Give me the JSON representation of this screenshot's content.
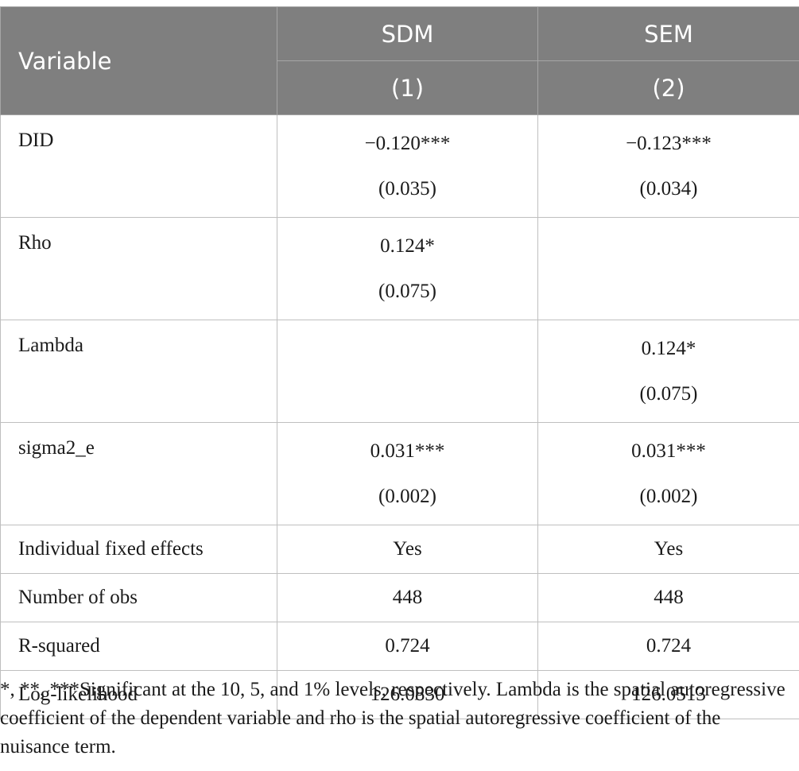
{
  "table": {
    "header": {
      "variable": "Variable",
      "col1_model": "SDM",
      "col2_model": "SEM",
      "col1_num": "(1)",
      "col2_num": "(2)"
    },
    "rows": [
      {
        "label": "DID",
        "c1": "−0.120***",
        "c1_se": "(0.035)",
        "c2": "−0.123***",
        "c2_se": "(0.034)"
      },
      {
        "label": "Rho",
        "c1": "0.124*",
        "c1_se": "(0.075)",
        "c2": "",
        "c2_se": ""
      },
      {
        "label": "Lambda",
        "c1": "",
        "c1_se": "",
        "c2": "0.124*",
        "c2_se": "(0.075)"
      },
      {
        "label": "sigma2_e",
        "c1": "0.031***",
        "c1_se": "(0.002)",
        "c2": "0.031***",
        "c2_se": "(0.002)"
      },
      {
        "label": "Individual fixed effects",
        "c1": "Yes",
        "c2": "Yes"
      },
      {
        "label": "Number of obs",
        "c1": "448",
        "c2": "448"
      },
      {
        "label": "R-squared",
        "c1": "0.724",
        "c2": "0.724"
      },
      {
        "label": "Log-likelihood",
        "c1": "126.0830",
        "c2": "126.0513"
      }
    ]
  },
  "footnote": "*, **, ***Significant at the 10, 5, and 1% levels, respectively. Lambda is the spatial autoregressive coefficient of the dependent variable and rho is the spatial autoregressive coefficient of the nuisance term."
}
